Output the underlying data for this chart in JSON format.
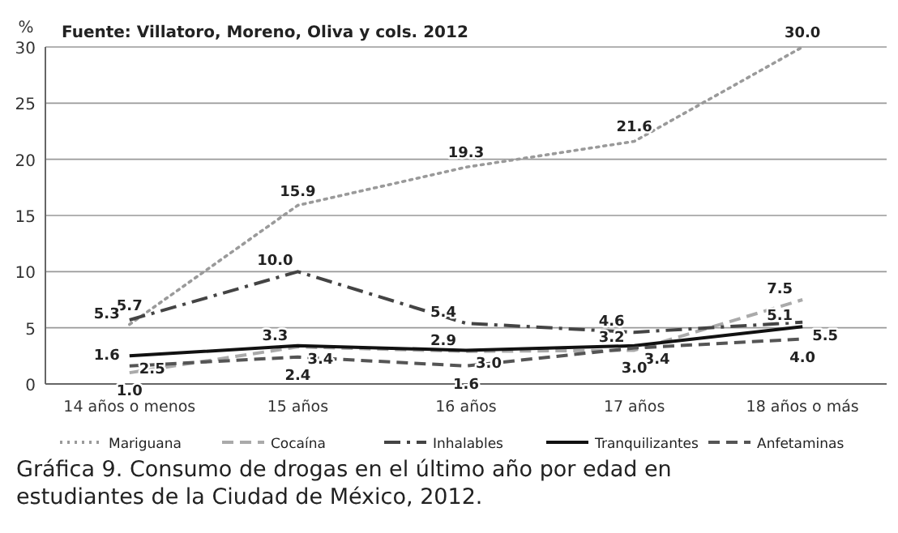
{
  "chart_data": {
    "type": "line",
    "title": "Gráfica 9. Consumo de drogas en el último año por edad en estudiantes de la Ciudad de México, 2012.",
    "ylabel": "%",
    "annotations": [
      "Fuente: Villatoro, Moreno, Oliva y cols. 2012"
    ],
    "categories": [
      "14 años o menos",
      "15 años",
      "16 años",
      "17 años",
      "18 años o más"
    ],
    "ylim": [
      0,
      30
    ],
    "yticks": [
      0,
      5,
      10,
      15,
      20,
      25,
      30
    ],
    "grid": "y",
    "legend": "bottom",
    "series": [
      {
        "name": "Mariguana",
        "color": "#9a9a9a",
        "line_style": "dotted",
        "values": [
          5.3,
          15.9,
          19.3,
          21.6,
          30.0
        ],
        "value_labels": [
          "5.3",
          "15.9",
          "19.3",
          "21.6",
          "30.0"
        ]
      },
      {
        "name": "Cocaína",
        "color": "#aaaaaa",
        "line_style": "dashed",
        "values": [
          1.0,
          3.3,
          2.9,
          3.0,
          7.5
        ],
        "value_labels": [
          "1.0",
          "3.3",
          "2.9",
          "3.0",
          "7.5"
        ]
      },
      {
        "name": "Inhalables",
        "color": "#444444",
        "line_style": "dashdot",
        "values": [
          5.7,
          10.0,
          5.4,
          4.6,
          5.5
        ],
        "value_labels": [
          "5.7",
          "10.0",
          "5.4",
          "4.6",
          "5.5"
        ]
      },
      {
        "name": "Tranquilizantes",
        "color": "#111111",
        "line_style": "solid",
        "values": [
          2.5,
          3.4,
          3.0,
          3.4,
          5.1
        ],
        "value_labels": [
          "2.5",
          "3.4",
          "3.0",
          "3.4",
          "5.1"
        ]
      },
      {
        "name": "Anfetaminas",
        "color": "#555555",
        "line_style": "dashed",
        "values": [
          1.6,
          2.4,
          1.6,
          3.2,
          4.0
        ],
        "value_labels": [
          "1.6",
          "2.4",
          "1.6",
          "3.2",
          "4.0"
        ]
      }
    ]
  }
}
